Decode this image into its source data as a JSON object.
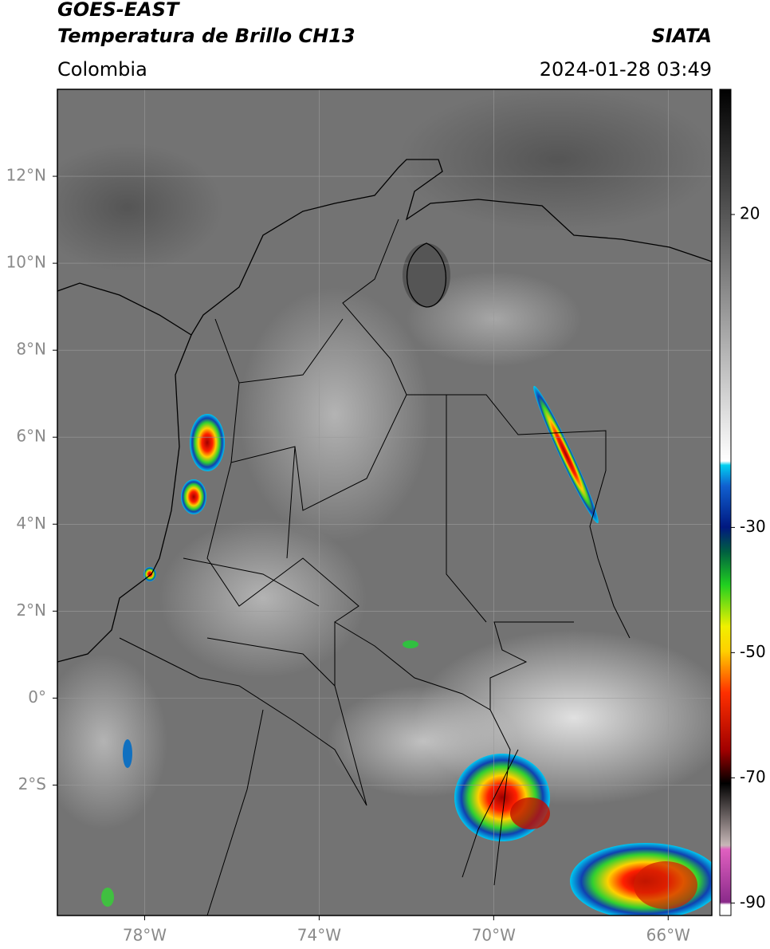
{
  "header": {
    "title": "GOES-EAST",
    "subtitle": "Temperatura de Brillo CH13",
    "source": "SIATA",
    "region": "Colombia",
    "datetime": "2024-01-28 03:49"
  },
  "map": {
    "xlim": [
      -80,
      -65
    ],
    "ylim": [
      -5,
      14
    ],
    "grid": true,
    "xticks": [
      {
        "value": -78,
        "label": "78°W"
      },
      {
        "value": -74,
        "label": "74°W"
      },
      {
        "value": -70,
        "label": "70°W"
      },
      {
        "value": -66,
        "label": "66°W"
      }
    ],
    "yticks": [
      {
        "value": 12,
        "label": "12°N"
      },
      {
        "value": 10,
        "label": "10°N"
      },
      {
        "value": 8,
        "label": "8°N"
      },
      {
        "value": 6,
        "label": "6°N"
      },
      {
        "value": 4,
        "label": "4°N"
      },
      {
        "value": 2,
        "label": "2°N"
      },
      {
        "value": 0,
        "label": "0°"
      },
      {
        "value": -2,
        "label": "2°S"
      }
    ]
  },
  "colorbar": {
    "lim": [
      -92,
      40
    ],
    "ticks": [
      20,
      -30,
      -50,
      -70,
      -90
    ]
  }
}
